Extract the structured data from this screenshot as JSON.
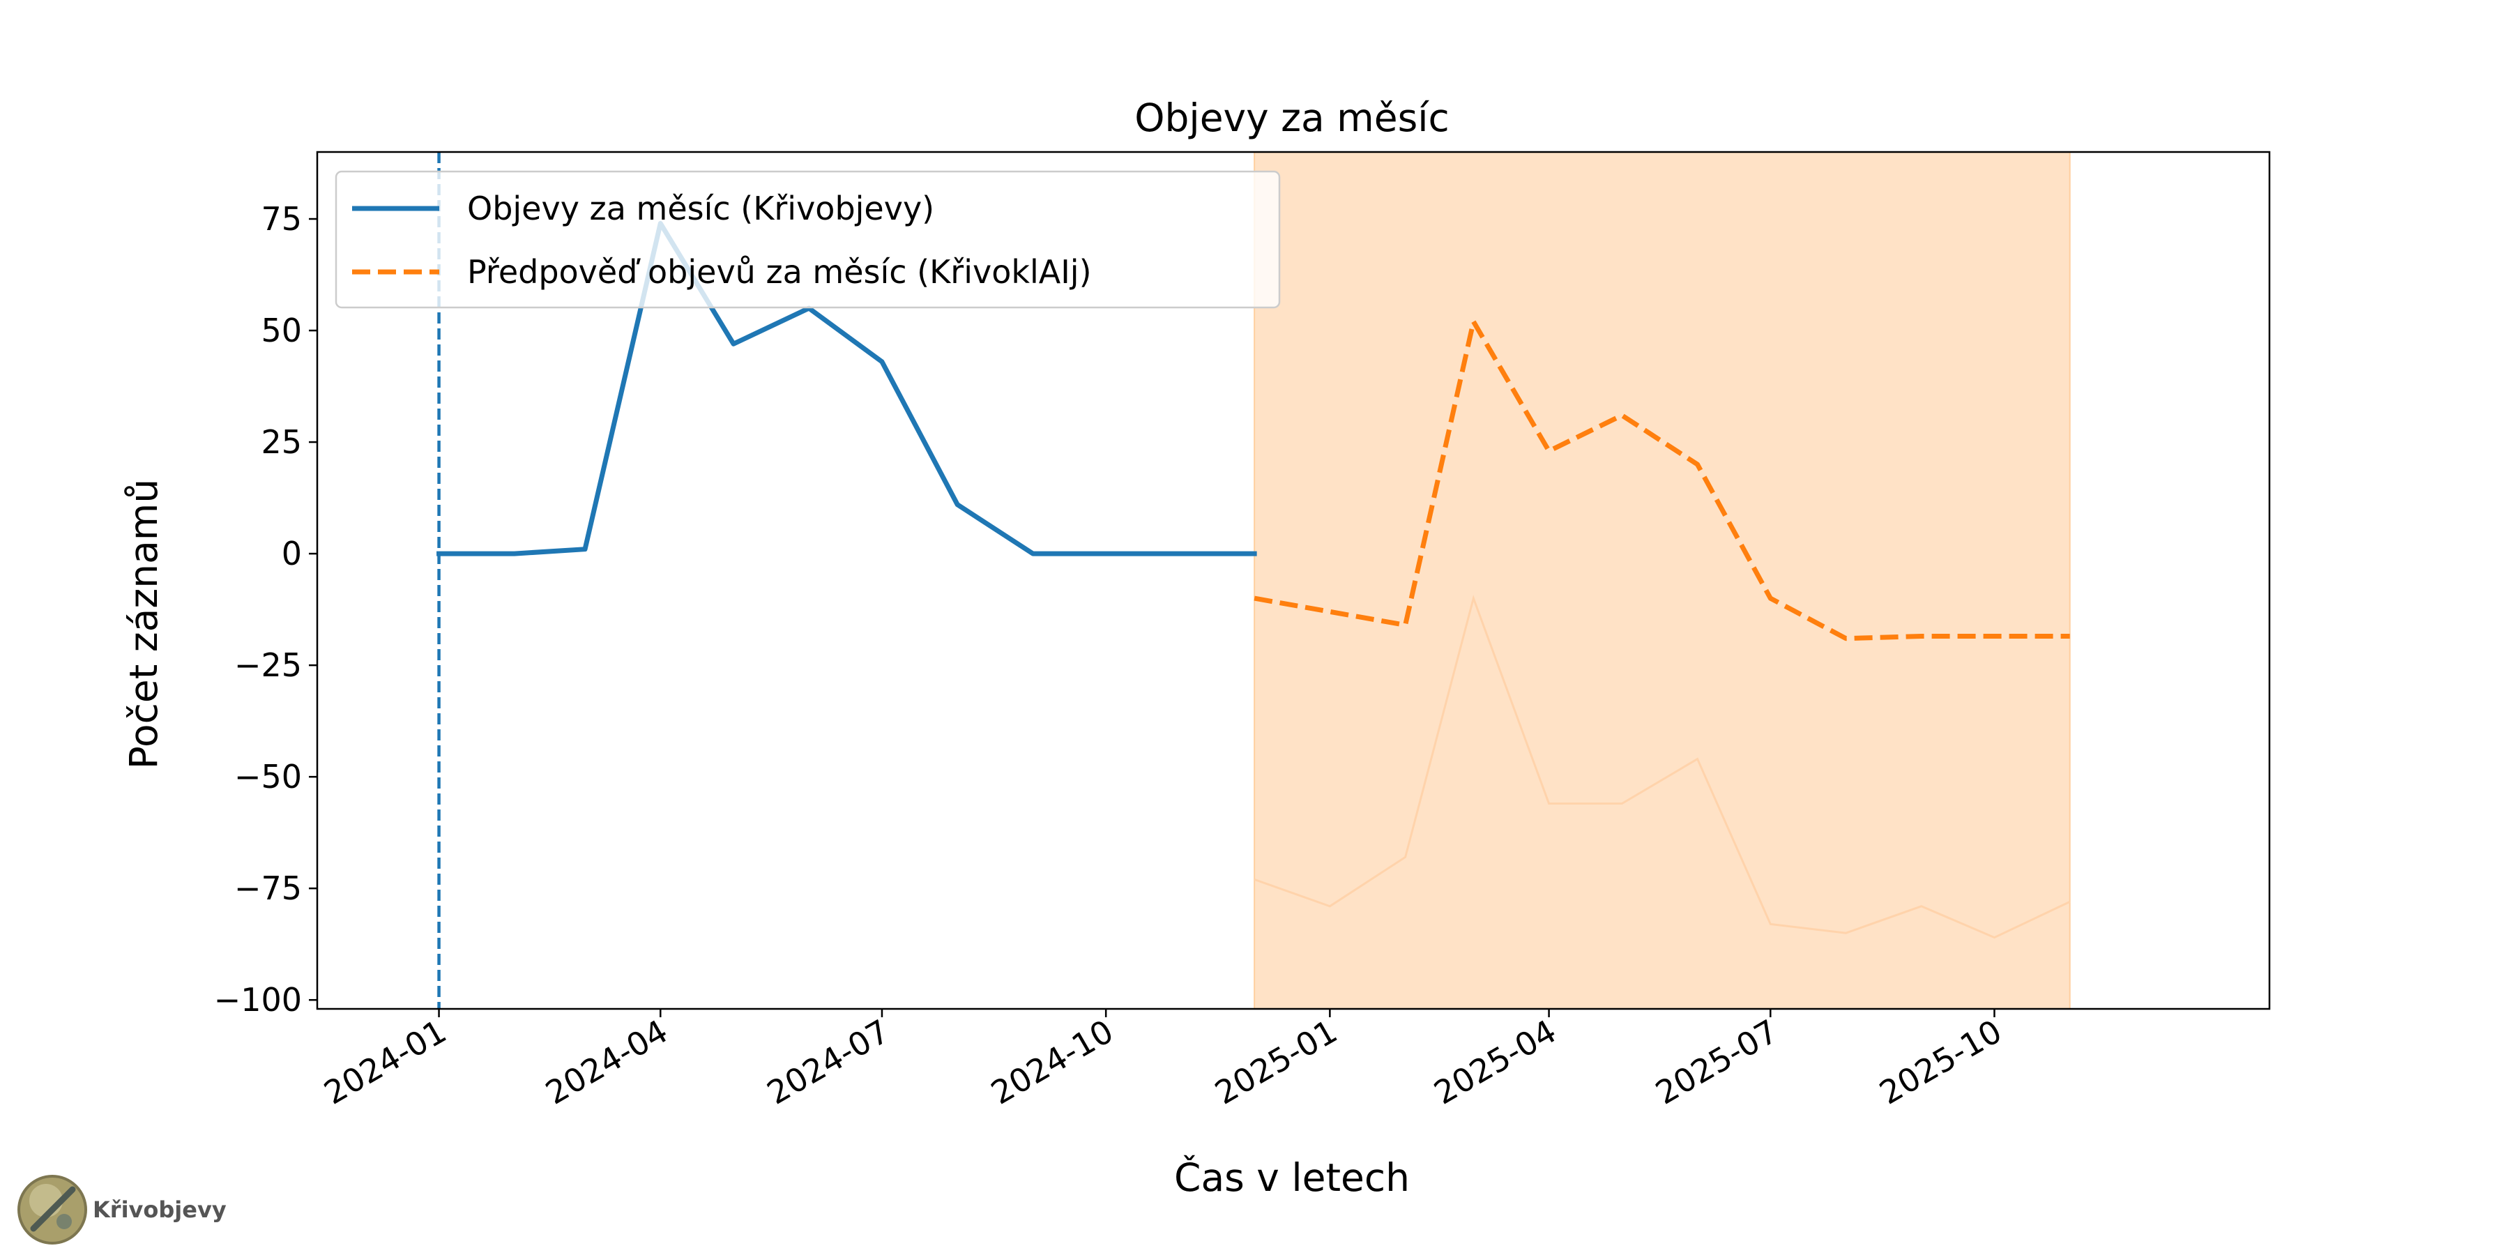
{
  "colors": {
    "observed": "#1f77b4",
    "forecast": "#ff7f0e",
    "forecast_band": "#ffe2c6",
    "forecast_band_edge": "#ffcf9f",
    "band_inner_line": "#ffd3ab"
  },
  "watermark": {
    "label": "Křivobjevy",
    "icon": "telescope-logo-icon"
  },
  "chart_data": {
    "type": "line",
    "title": "Objevy za měsíc",
    "xlabel": "Čas v letech",
    "ylabel": "Počet záznamů",
    "x_axis_type": "date",
    "xlim": [
      "2023-11-12",
      "2026-01-22"
    ],
    "ylim": [
      -102,
      90
    ],
    "yticks": [
      -100,
      -75,
      -50,
      -25,
      0,
      25,
      50,
      75
    ],
    "ytick_labels": [
      "−100",
      "−75",
      "−50",
      "−25",
      "0",
      "25",
      "50",
      "75"
    ],
    "xticks": [
      "2024-01-01",
      "2024-04-01",
      "2024-07-01",
      "2024-10-01",
      "2025-01-01",
      "2025-04-01",
      "2025-07-01",
      "2025-10-01"
    ],
    "xtick_labels": [
      "2024-01",
      "2024-04",
      "2024-07",
      "2024-10",
      "2025-01",
      "2025-04",
      "2025-07",
      "2025-10"
    ],
    "vertical_marker": {
      "x": "2024-01-01",
      "style": "dashed"
    },
    "shaded_region": {
      "x_start": "2024-12-01",
      "x_end": "2025-11-01"
    },
    "grid": false,
    "legend_position": "upper-left",
    "series": [
      {
        "name": "Objevy za měsíc (Křivobjevy)",
        "style": "solid",
        "x": [
          "2024-01-01",
          "2024-02-01",
          "2024-03-01",
          "2024-04-01",
          "2024-05-01",
          "2024-06-01",
          "2024-07-01",
          "2024-08-01",
          "2024-09-01",
          "2024-10-01",
          "2024-11-01",
          "2024-12-01"
        ],
        "y": [
          0,
          0,
          1,
          74,
          47,
          55,
          43,
          11,
          0,
          0,
          0,
          0
        ]
      },
      {
        "name": "Předpověď objevů za měsíc (KřivoklAIj)",
        "style": "dashed",
        "x": [
          "2024-12-01",
          "2025-01-01",
          "2025-02-01",
          "2025-03-01",
          "2025-04-01",
          "2025-05-01",
          "2025-06-01",
          "2025-07-01",
          "2025-08-01",
          "2025-09-01",
          "2025-10-01",
          "2025-11-01"
        ],
        "y": [
          -10,
          -13,
          -16,
          52,
          23,
          31,
          20,
          -10,
          -19,
          -18.5,
          -18.5,
          -18.5
        ]
      },
      {
        "style": "faint",
        "x": [
          "2024-12-01",
          "2025-01-01",
          "2025-02-01",
          "2025-03-01",
          "2025-04-01",
          "2025-05-01",
          "2025-06-01",
          "2025-07-01",
          "2025-08-01",
          "2025-09-01",
          "2025-10-01",
          "2025-11-01"
        ],
        "y": [
          -73,
          -79,
          -68,
          -10,
          -56,
          -56,
          -46,
          -83,
          -85,
          -79,
          -86,
          -78
        ]
      }
    ]
  }
}
